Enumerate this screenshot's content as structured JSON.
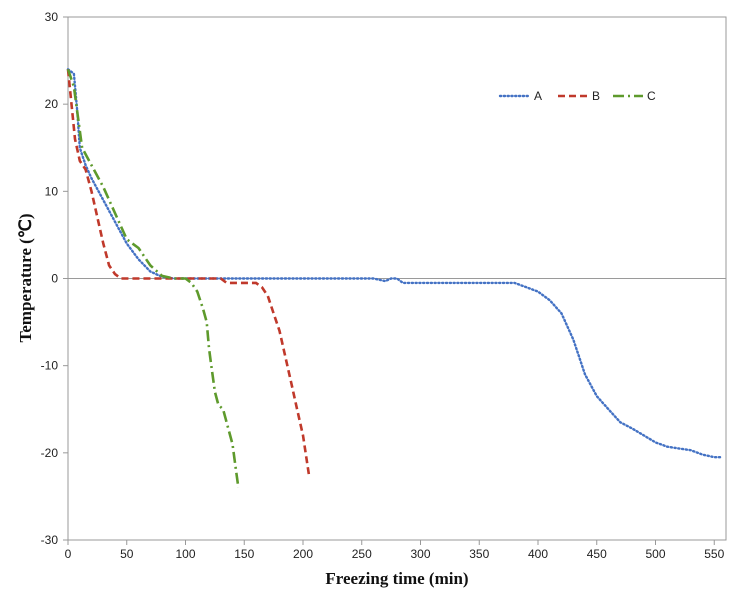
{
  "chart_data": {
    "type": "line",
    "xlabel": "Freezing time (min)",
    "ylabel": "Temperature (℃)",
    "xlim": [
      0,
      560
    ],
    "ylim": [
      -30,
      30
    ],
    "xticks": [
      0,
      50,
      100,
      150,
      200,
      250,
      300,
      350,
      400,
      450,
      500,
      550
    ],
    "yticks": [
      -30,
      -20,
      -10,
      0,
      10,
      20,
      30
    ],
    "zero_line": true,
    "grid": false,
    "legend_position": "top-right",
    "series": [
      {
        "name": "A",
        "color": "#4472C4",
        "dash": "dotted",
        "points": [
          [
            0,
            24
          ],
          [
            5,
            23.5
          ],
          [
            8,
            19
          ],
          [
            10,
            15
          ],
          [
            15,
            13
          ],
          [
            20,
            11.5
          ],
          [
            30,
            9
          ],
          [
            40,
            6.5
          ],
          [
            50,
            4
          ],
          [
            60,
            2.2
          ],
          [
            70,
            0.8
          ],
          [
            80,
            0.2
          ],
          [
            90,
            0
          ],
          [
            150,
            0
          ],
          [
            200,
            0
          ],
          [
            260,
            0
          ],
          [
            270,
            -0.3
          ],
          [
            275,
            0
          ],
          [
            280,
            0
          ],
          [
            285,
            -0.5
          ],
          [
            300,
            -0.5
          ],
          [
            350,
            -0.5
          ],
          [
            380,
            -0.5
          ],
          [
            390,
            -1
          ],
          [
            400,
            -1.5
          ],
          [
            410,
            -2.5
          ],
          [
            420,
            -4
          ],
          [
            430,
            -7
          ],
          [
            440,
            -11
          ],
          [
            450,
            -13.5
          ],
          [
            460,
            -15
          ],
          [
            470,
            -16.5
          ],
          [
            480,
            -17.2
          ],
          [
            490,
            -18
          ],
          [
            500,
            -18.8
          ],
          [
            510,
            -19.3
          ],
          [
            520,
            -19.5
          ],
          [
            530,
            -19.7
          ],
          [
            540,
            -20.2
          ],
          [
            550,
            -20.5
          ],
          [
            556,
            -20.5
          ]
        ]
      },
      {
        "name": "B",
        "color": "#C0392B",
        "dash": "dashed",
        "points": [
          [
            0,
            24
          ],
          [
            3,
            20
          ],
          [
            6,
            16
          ],
          [
            10,
            13.5
          ],
          [
            15,
            12.5
          ],
          [
            20,
            10
          ],
          [
            25,
            7
          ],
          [
            30,
            4
          ],
          [
            35,
            1.5
          ],
          [
            40,
            0.5
          ],
          [
            45,
            0
          ],
          [
            100,
            0
          ],
          [
            130,
            0
          ],
          [
            135,
            -0.5
          ],
          [
            160,
            -0.5
          ],
          [
            165,
            -1
          ],
          [
            170,
            -2
          ],
          [
            175,
            -4
          ],
          [
            180,
            -6
          ],
          [
            185,
            -9
          ],
          [
            190,
            -12
          ],
          [
            195,
            -15
          ],
          [
            200,
            -18
          ],
          [
            205,
            -22.5
          ]
        ]
      },
      {
        "name": "C",
        "color": "#5E9A2C",
        "dash": "dashdot",
        "points": [
          [
            0,
            24
          ],
          [
            5,
            22
          ],
          [
            8,
            19
          ],
          [
            12,
            15
          ],
          [
            20,
            13
          ],
          [
            30,
            10.5
          ],
          [
            40,
            7.5
          ],
          [
            50,
            4.5
          ],
          [
            60,
            3.5
          ],
          [
            70,
            1.5
          ],
          [
            80,
            0.3
          ],
          [
            90,
            0
          ],
          [
            100,
            0
          ],
          [
            105,
            -0.5
          ],
          [
            110,
            -1.5
          ],
          [
            115,
            -3.5
          ],
          [
            118,
            -5
          ],
          [
            120,
            -8
          ],
          [
            122,
            -10
          ],
          [
            125,
            -13
          ],
          [
            128,
            -14.5
          ],
          [
            132,
            -15
          ],
          [
            135,
            -16.5
          ],
          [
            140,
            -19
          ],
          [
            143,
            -22
          ],
          [
            145,
            -24
          ]
        ]
      }
    ]
  }
}
